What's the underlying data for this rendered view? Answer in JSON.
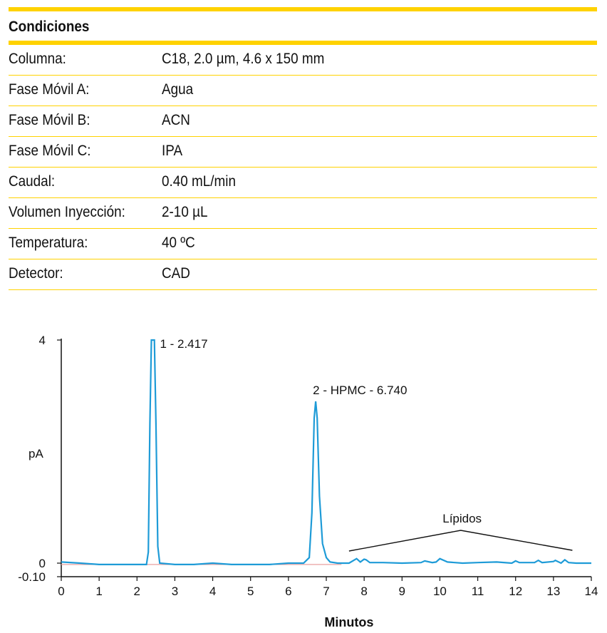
{
  "conditions": {
    "title": "Condiciones",
    "rows": [
      {
        "label": "Columna:",
        "value": "C18, 2.0 µm, 4.6 x 150 mm"
      },
      {
        "label": "Fase Móvil A:",
        "value": "Agua"
      },
      {
        "label": "Fase Móvil B:",
        "value": "ACN"
      },
      {
        "label": "Fase Móvil C:",
        "value": "IPA"
      },
      {
        "label": "Caudal:",
        "value": "0.40 mL/min"
      },
      {
        "label": "Volumen Inyección:",
        "value": "2-10 µL"
      },
      {
        "label": "Temperatura:",
        "value": "40 ºC"
      },
      {
        "label": "Detector:",
        "value": "CAD"
      }
    ]
  },
  "colors": {
    "accent": "#FFD200",
    "trace": "#1E9BD7",
    "baseline": "#E8A0A0"
  },
  "chart_data": {
    "type": "line",
    "xlabel": "Minutos",
    "ylabel": "pA",
    "xlim": [
      0,
      14
    ],
    "ylim": [
      -0.1,
      4
    ],
    "x_ticks": [
      "0",
      "1",
      "2",
      "3",
      "4",
      "5",
      "6",
      "7",
      "8",
      "9",
      "10",
      "11",
      "12",
      "13",
      "14"
    ],
    "y_ticks": [
      "4",
      "0",
      "-0.10"
    ],
    "peaks": [
      {
        "label": "1 - 2.417",
        "rt": 2.417,
        "height": 4.0
      },
      {
        "label": "2 - HPMC - 6.740",
        "rt": 6.74,
        "height": 2.9
      }
    ],
    "annotation": {
      "label": "Lípidos",
      "x_start": 7.6,
      "x_end": 13.5,
      "apex_x": 10.55
    },
    "series": [
      {
        "x": [
          0,
          0.5,
          1,
          1.5,
          2,
          2.25,
          2.3,
          2.34,
          2.38,
          2.42,
          2.46,
          2.5,
          2.55,
          2.6,
          3,
          3.5,
          4,
          4.5,
          5,
          5.5,
          6,
          6.4,
          6.55,
          6.62,
          6.68,
          6.72,
          6.76,
          6.82,
          6.9,
          7.0,
          7.1,
          7.3,
          7.6,
          7.8,
          7.9,
          8.0,
          8.05,
          8.15,
          8.5,
          9,
          9.5,
          9.6,
          9.8,
          9.9,
          10.0,
          10.2,
          10.6,
          11,
          11.5,
          11.9,
          12.0,
          12.1,
          12.5,
          12.6,
          12.7,
          13.0,
          13.05,
          13.2,
          13.3,
          13.4,
          13.6,
          14
        ],
        "y": [
          0.02,
          0.0,
          -0.01,
          -0.01,
          -0.01,
          -0.01,
          0.2,
          2.5,
          4.0,
          4.0,
          4.0,
          2.5,
          0.3,
          0.0,
          -0.01,
          -0.01,
          0.0,
          -0.01,
          -0.01,
          -0.01,
          0.0,
          0.0,
          0.1,
          0.9,
          2.6,
          2.9,
          2.6,
          1.2,
          0.35,
          0.1,
          0.02,
          0.0,
          0.0,
          0.08,
          0.02,
          0.07,
          0.06,
          0.01,
          0.01,
          0.0,
          0.01,
          0.04,
          0.01,
          0.02,
          0.08,
          0.02,
          0.0,
          0.01,
          0.02,
          0.0,
          0.04,
          0.01,
          0.01,
          0.05,
          0.01,
          0.03,
          0.05,
          0.0,
          0.06,
          0.01,
          0.0,
          0.0
        ]
      }
    ]
  }
}
